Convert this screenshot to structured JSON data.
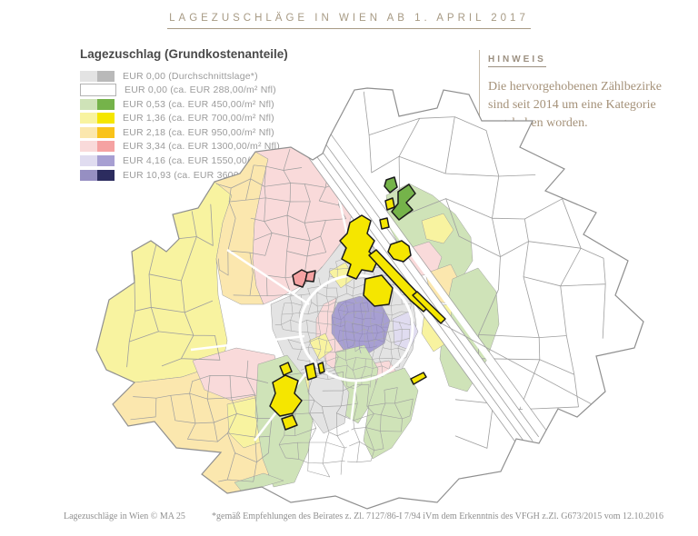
{
  "title": "LAGEZUSCHLÄGE IN WIEN AB 1. APRIL 2017",
  "legend": {
    "title": "Lagezuschlag (Grundkostenanteile)",
    "items": [
      {
        "label": "EUR 0,00 (Durchschnittslage*)",
        "light": "#e3e3e3",
        "dark": "#b9b9b9"
      },
      {
        "label": "EUR 0,00 (ca. EUR 288,00/m² Nfl)",
        "light": "#ffffff",
        "dark": "#ffffff"
      },
      {
        "label": "EUR 0,53 (ca. EUR 450,00/m² Nfl)",
        "light": "#cfe3b8",
        "dark": "#75b34a"
      },
      {
        "label": "EUR 1,36 (ca. EUR 700,00/m² Nfl)",
        "light": "#f8f3a0",
        "dark": "#f5e600"
      },
      {
        "label": "EUR 2,18 (ca. EUR 950,00/m² Nfl)",
        "light": "#fbe7ae",
        "dark": "#f9c31a"
      },
      {
        "label": "EUR 3,34 (ca. EUR 1300,00/m² Nfl)",
        "light": "#f9dada",
        "dark": "#f5a2a2"
      },
      {
        "label": "EUR 4,16 (ca. EUR 1550,00/m² Nfl)",
        "light": "#e0dcf0",
        "dark": "#a79fd2"
      },
      {
        "label": "EUR 10,93 (ca. EUR 3600,00/m² Nfl)",
        "light": "#968fc2",
        "dark": "#2c2c5f"
      }
    ]
  },
  "hinweis": {
    "title": "HINWEIS",
    "body": "Die hervorgehobenen Zählbezirke sind seit 2014 um eine Kategorie angehoben worden."
  },
  "footer": {
    "left": "Lagezuschläge in Wien © MA 25",
    "right": "*gemäß Empfehlungen des Beirates z. Zl. 7127/86-I 7/94 iVm dem Erkenntnis des VFGH z.Zl. G673/2015 vom 12.10.2016"
  },
  "map": {
    "fills": {
      "white": "#ffffff",
      "gray_light": "#e3e3e3",
      "green_light": "#cfe3b8",
      "green_bright": "#75b34a",
      "yellow_light": "#f8f3a0",
      "yellow_bright": "#f5e600",
      "gold_light": "#fbe7ae",
      "gold_bright": "#f9c31a",
      "pink_light": "#f9dada",
      "pink_bright": "#f5a2a2",
      "lavender_light": "#e0dcf0",
      "lavender_mid": "#a79fd2",
      "navy": "#2c2c5f",
      "border": "#9e9e9e",
      "outline": "#8f8f8f",
      "highlight_stroke": "#1a1a1a"
    }
  }
}
